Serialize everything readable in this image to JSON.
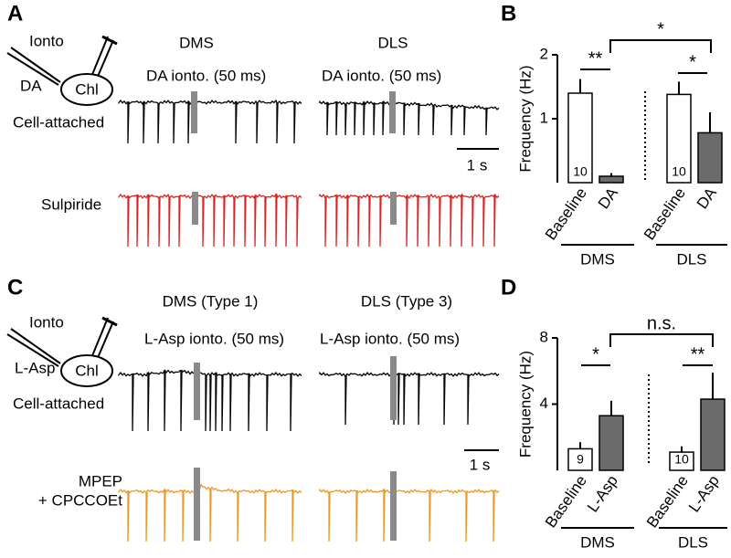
{
  "panel_labels": [
    "A",
    "B",
    "C",
    "D"
  ],
  "panel_a": {
    "pipette": "Ionto",
    "drug": "DA",
    "cell": "Chl",
    "recording": "Cell-attached",
    "regions": [
      "DMS",
      "DLS"
    ],
    "stimulus": [
      "DA ionto. (50 ms)",
      "DA ionto. (50 ms)"
    ],
    "scale_bar": "1 s",
    "condition": "Sulpiride"
  },
  "panel_c": {
    "pipette": "Ionto",
    "drug": "L-Asp",
    "cell": "Chl",
    "recording": "Cell-attached",
    "regions": [
      "DMS (Type 1)",
      "DLS (Type 3)"
    ],
    "stimulus": [
      "L-Asp ionto. (50 ms)",
      "L-Asp ionto. (50 ms)"
    ],
    "scale_bar": "1 s",
    "condition": [
      "MPEP",
      "+ CPCCOEt"
    ]
  },
  "chart_data": [
    {
      "type": "bar",
      "ylabel": "Frequency (Hz)",
      "categories": [
        "Baseline",
        "DA",
        "Baseline",
        "DA"
      ],
      "values": [
        1.4,
        0.1,
        1.38,
        0.78
      ],
      "errors": [
        0.22,
        0.05,
        0.2,
        0.32
      ],
      "colors": [
        "#ffffff",
        "#6b6b6b",
        "#ffffff",
        "#6b6b6b"
      ],
      "sample_sizes": [
        "10",
        null,
        "10",
        null
      ],
      "groups": [
        "DMS",
        "DLS"
      ],
      "significance": [
        "**",
        "*",
        "*"
      ],
      "ylim": [
        0,
        2
      ],
      "yticks": [
        1,
        2
      ]
    },
    {
      "type": "bar",
      "ylabel": "Frequency (Hz)",
      "categories": [
        "Baseline",
        "L-Asp",
        "Baseline",
        "L-Asp"
      ],
      "values": [
        1.3,
        3.3,
        1.1,
        4.3
      ],
      "errors": [
        0.4,
        0.9,
        0.35,
        1.6
      ],
      "colors": [
        "#ffffff",
        "#6b6b6b",
        "#ffffff",
        "#6b6b6b"
      ],
      "sample_sizes": [
        "9",
        null,
        "10",
        null
      ],
      "groups": [
        "DMS",
        "DLS"
      ],
      "significance": [
        "*",
        "**",
        "n.s."
      ],
      "ylim": [
        0,
        8
      ],
      "yticks": [
        4,
        8
      ]
    }
  ]
}
